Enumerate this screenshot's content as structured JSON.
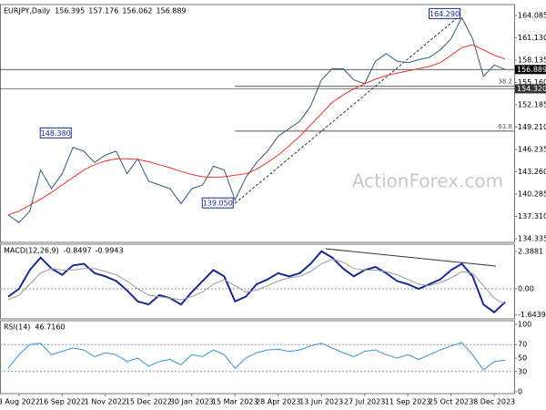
{
  "chart_data": [
    {
      "type": "line",
      "title": "EURJPY,Daily",
      "last_bar": {
        "open": 156.395,
        "high": 157.176,
        "low": 156.062,
        "close": 156.889
      },
      "watermark": "ActionForex.com",
      "categories": [
        null,
        "3 Aug 2022",
        null,
        null,
        null,
        "16 Sep 2022",
        null,
        null,
        null,
        "1 Nov 2022",
        null,
        null,
        null,
        "15 Dec 2022",
        null,
        null,
        null,
        "30 Jan 2023",
        null,
        null,
        null,
        "15 Mar 2023",
        null,
        null,
        null,
        "28 Apr 2023",
        null,
        null,
        null,
        "13 Jun 2023",
        null,
        null,
        null,
        "27 Jul 2023",
        null,
        null,
        null,
        "11 Sep 2023",
        null,
        null,
        null,
        "25 Oct 2023",
        null,
        null,
        null,
        "8 Dec 2023",
        null
      ],
      "series": [
        {
          "color": "#34597d",
          "values": [
            137.5,
            136.5,
            138,
            143.5,
            141,
            143,
            146.5,
            146,
            144.5,
            145.5,
            146,
            143,
            145,
            142,
            141.5,
            141,
            139,
            141,
            141.5,
            144,
            143.5,
            139.5,
            142.5,
            144.5,
            146,
            148,
            149,
            150,
            152,
            155.5,
            157,
            157,
            155.5,
            155,
            158,
            159,
            158,
            157.8,
            158.2,
            158.5,
            159.5,
            161,
            163.8,
            161,
            156,
            157.5,
            156.9
          ]
        },
        {
          "color": "#e8342e",
          "values": [
            137.5,
            138,
            138.8,
            139.6,
            140.5,
            141.5,
            142.5,
            143.5,
            144.2,
            144.7,
            145,
            145,
            144.9,
            144.6,
            144.2,
            143.8,
            143.3,
            142.9,
            142.6,
            142.5,
            142.6,
            142.8,
            143,
            143.6,
            144.5,
            145.5,
            146.7,
            148,
            149.5,
            151,
            152.5,
            153.5,
            154.3,
            155,
            155.6,
            156.1,
            156.4,
            156.7,
            157,
            157.3,
            157.8,
            158.8,
            159.8,
            160.2,
            159.5,
            158.8,
            158.3
          ]
        }
      ],
      "ylim": [
        133.85,
        165.55
      ],
      "yticks": [
        164.085,
        {
          "value": 161.13,
          "label": "161.130"
        },
        158.135,
        {
          "value": 155.16,
          "label": "155.160"
        },
        152.185,
        {
          "value": 149.21,
          "label": "149.210"
        },
        146.235,
        {
          "value": 143.26,
          "label": "143.260"
        },
        140.285,
        {
          "value": 137.31,
          "label": "137.310"
        },
        134.335
      ],
      "price_lines": [
        {
          "value": 156.889,
          "label": "156.889",
          "color": "#000000"
        },
        {
          "value": 154.32,
          "label": "154.320",
          "color": "#333333"
        }
      ],
      "fib_levels": [
        {
          "value": 154.65,
          "label": "38.2"
        },
        {
          "value": 148.69,
          "label": "61.8"
        }
      ],
      "fib_start_index": 21,
      "annotations": [
        {
          "value": 164.29,
          "label": "164.290",
          "index": 42
        },
        {
          "value": 148.38,
          "label": "148.380",
          "index": 6
        },
        {
          "value": 139.05,
          "label": "139.050",
          "index": 21
        }
      ]
    },
    {
      "type": "line",
      "title": "MACD(12,26,9)",
      "readout": [
        -0.8497,
        -0.9943
      ],
      "series": [
        {
          "color": "#1a2a8f",
          "width": 2,
          "values": [
            -0.5,
            0,
            1.2,
            2,
            1.3,
            0.9,
            1.5,
            1.6,
            1,
            0.8,
            0.5,
            -0.1,
            -0.8,
            -1,
            -0.4,
            -0.6,
            -1,
            -0.2,
            0.5,
            1.2,
            0.8,
            -0.8,
            -0.5,
            0.3,
            0.6,
            1,
            0.8,
            1,
            1.6,
            2.4,
            2,
            1.3,
            0.8,
            1.2,
            1.4,
            1,
            0.5,
            0.3,
            0,
            0.3,
            0.6,
            1.2,
            1.6,
            0.8,
            -1,
            -1.5,
            -0.85
          ]
        },
        {
          "color": "#9a9a9a",
          "width": 1,
          "values": [
            -0.7,
            -0.4,
            0.3,
            1,
            1.3,
            1.2,
            1.2,
            1.3,
            1.3,
            1.1,
            0.9,
            0.5,
            0,
            -0.4,
            -0.5,
            -0.6,
            -0.7,
            -0.5,
            -0.2,
            0.3,
            0.6,
            0.2,
            -0.2,
            -0.1,
            0.2,
            0.5,
            0.7,
            0.8,
            1.1,
            1.6,
            1.9,
            1.7,
            1.3,
            1.2,
            1.2,
            1.1,
            0.9,
            0.6,
            0.3,
            0.2,
            0.4,
            0.7,
            1.1,
            1,
            0.2,
            -0.6,
            -0.99
          ]
        }
      ],
      "ylim": [
        -1.92,
        2.854
      ],
      "yticks": [
        2.3881,
        {
          "value": 0,
          "label": "0.00"
        },
        -1.6439
      ],
      "levels": [
        0
      ]
    },
    {
      "type": "line",
      "title": "RSI(14)",
      "readout": [
        {
          "value": 46.716,
          "label": "46.7160"
        }
      ],
      "series": [
        {
          "color": "#3b8fd9",
          "width": 1,
          "values": [
            35,
            55,
            70,
            72,
            55,
            60,
            65,
            62,
            52,
            58,
            55,
            45,
            50,
            38,
            45,
            48,
            40,
            55,
            52,
            62,
            55,
            35,
            50,
            58,
            62,
            63,
            60,
            62,
            68,
            72,
            65,
            58,
            52,
            60,
            62,
            55,
            50,
            55,
            48,
            55,
            62,
            68,
            73,
            55,
            32,
            45,
            46.7
          ]
        }
      ],
      "ylim": [
        -2.7,
        105.4
      ],
      "yticks": [
        100,
        70,
        50,
        30,
        0
      ],
      "levels": [
        70,
        30
      ]
    }
  ]
}
